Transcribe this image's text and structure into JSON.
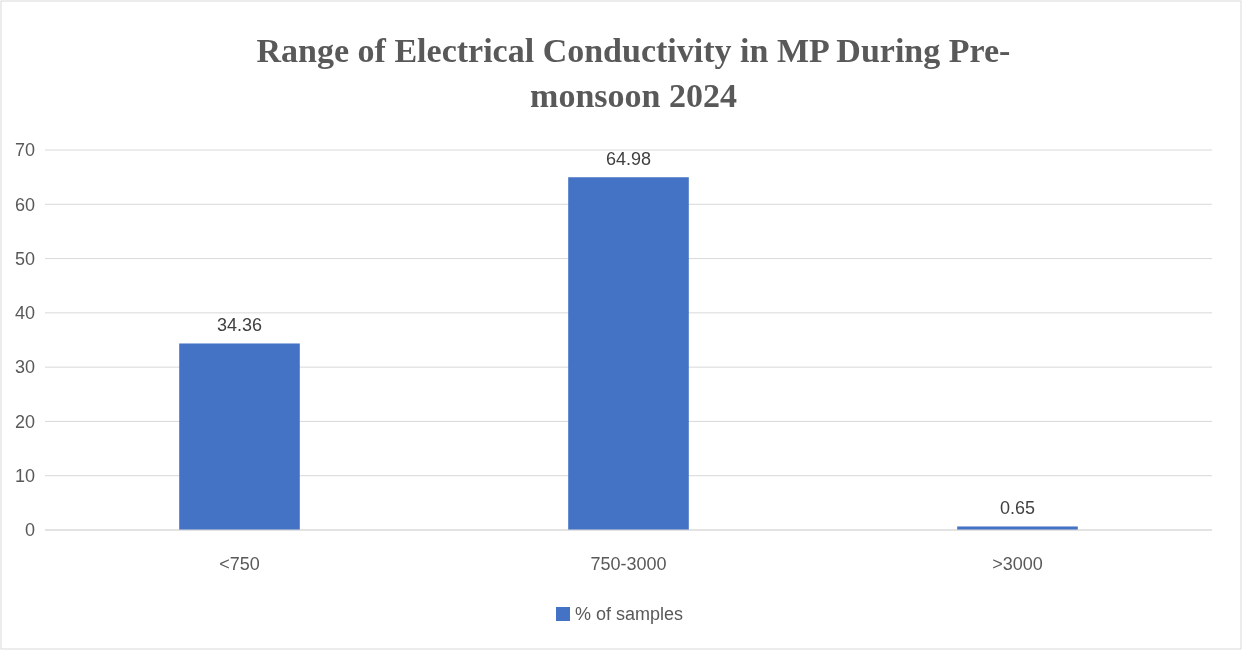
{
  "chart_data": {
    "type": "bar",
    "title": "Range of Electrical Conductivity in MP During Pre-monsoon 2024",
    "categories": [
      "<750",
      "750-3000",
      ">3000"
    ],
    "series": [
      {
        "name": "% of samples",
        "color": "#4472c4",
        "values": [
          34.36,
          64.98,
          0.65
        ]
      }
    ],
    "ylim": [
      0,
      70
    ],
    "yticks": [
      0,
      10,
      20,
      30,
      40,
      50,
      60,
      70
    ],
    "grid": "y",
    "legend": "bottom",
    "data_labels": true
  }
}
